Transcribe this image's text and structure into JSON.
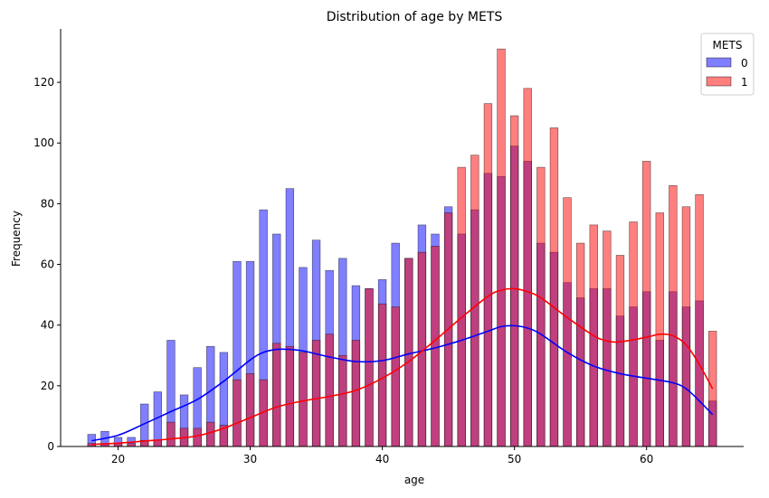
{
  "chart_data": {
    "type": "bar",
    "title": "Distribution of age by METS",
    "xlabel": "age",
    "ylabel": "Frequency",
    "xlim": [
      15.65,
      67.35
    ],
    "ylim": [
      0,
      137.6
    ],
    "xticks": [
      20,
      30,
      40,
      50,
      60
    ],
    "yticks": [
      0,
      20,
      40,
      60,
      80,
      100,
      120
    ],
    "grid": false,
    "legend": {
      "title": "METS",
      "placement": "top-right"
    },
    "ages": [
      18,
      19,
      20,
      21,
      22,
      23,
      24,
      25,
      26,
      27,
      28,
      29,
      30,
      31,
      32,
      33,
      34,
      35,
      36,
      37,
      38,
      39,
      40,
      41,
      42,
      43,
      44,
      45,
      46,
      47,
      48,
      49,
      50,
      51,
      52,
      53,
      54,
      55,
      56,
      57,
      58,
      59,
      60,
      61,
      62,
      63,
      64,
      65
    ],
    "series": [
      {
        "name": "0",
        "color": "#0000ff",
        "values": [
          4,
          5,
          3,
          3,
          14,
          18,
          35,
          17,
          26,
          33,
          31,
          61,
          61,
          78,
          70,
          85,
          59,
          68,
          58,
          62,
          53,
          52,
          55,
          67,
          62,
          73,
          70,
          79,
          70,
          78,
          90,
          89,
          99,
          94,
          67,
          64,
          54,
          49,
          52,
          52,
          43,
          46,
          51,
          35,
          51,
          46,
          48,
          15
        ],
        "kde": [
          [
            18,
            1.9
          ],
          [
            20,
            3.7
          ],
          [
            22,
            7.5
          ],
          [
            24,
            11.5
          ],
          [
            26,
            15.5
          ],
          [
            28,
            21.5
          ],
          [
            30,
            28.5
          ],
          [
            31,
            31.0
          ],
          [
            32,
            32.0
          ],
          [
            33,
            32.0
          ],
          [
            34,
            31.5
          ],
          [
            35,
            30.5
          ],
          [
            36,
            29.5
          ],
          [
            38,
            28.0
          ],
          [
            40,
            28.3
          ],
          [
            42,
            30.5
          ],
          [
            44,
            32.5
          ],
          [
            46,
            35.0
          ],
          [
            48,
            38.0
          ],
          [
            49,
            39.5
          ],
          [
            50,
            39.8
          ],
          [
            51,
            39.0
          ],
          [
            52,
            37.0
          ],
          [
            54,
            31.0
          ],
          [
            56,
            26.5
          ],
          [
            58,
            24.0
          ],
          [
            60,
            22.5
          ],
          [
            62,
            21.0
          ],
          [
            63,
            19.0
          ],
          [
            64,
            15.0
          ],
          [
            65,
            10.5
          ]
        ]
      },
      {
        "name": "1",
        "color": "#ff0000",
        "values": [
          1,
          1,
          1,
          1,
          2,
          2,
          8,
          6,
          6,
          8,
          7,
          22,
          24,
          22,
          34,
          33,
          31,
          35,
          37,
          30,
          35,
          52,
          47,
          46,
          62,
          64,
          66,
          77,
          92,
          96,
          113,
          131,
          109,
          118,
          92,
          105,
          82,
          67,
          73,
          71,
          63,
          74,
          94,
          77,
          86,
          79,
          83,
          38
        ],
        "kde": [
          [
            18,
            0.7
          ],
          [
            20,
            1.1
          ],
          [
            22,
            1.8
          ],
          [
            24,
            2.5
          ],
          [
            26,
            3.5
          ],
          [
            28,
            6.0
          ],
          [
            30,
            9.5
          ],
          [
            32,
            13.0
          ],
          [
            34,
            15.0
          ],
          [
            36,
            16.5
          ],
          [
            38,
            18.5
          ],
          [
            40,
            22.5
          ],
          [
            42,
            28.0
          ],
          [
            44,
            35.0
          ],
          [
            46,
            42.5
          ],
          [
            48,
            49.5
          ],
          [
            49,
            51.5
          ],
          [
            50,
            52.0
          ],
          [
            51,
            51.0
          ],
          [
            52,
            49.0
          ],
          [
            54,
            42.5
          ],
          [
            56,
            36.5
          ],
          [
            57,
            34.8
          ],
          [
            58,
            34.5
          ],
          [
            60,
            36.0
          ],
          [
            61,
            37.0
          ],
          [
            62,
            36.5
          ],
          [
            63,
            33.5
          ],
          [
            64,
            27.0
          ],
          [
            65,
            19.0
          ]
        ]
      }
    ]
  }
}
